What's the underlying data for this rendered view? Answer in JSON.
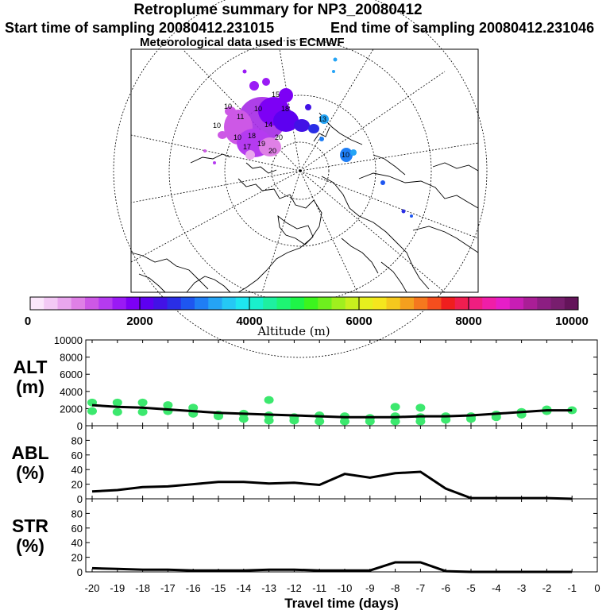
{
  "header": {
    "title": "Retroplume summary for NP3_20080412",
    "start_time": "Start time of sampling 20080412.231015",
    "end_time": "End time of sampling 20080412.231046",
    "met_data": "Meteorological data used is ECMWF"
  },
  "colorbar": {
    "label": "Altitude (m)",
    "ticks": [
      "0",
      "2000",
      "4000",
      "6000",
      "8000",
      "10000"
    ],
    "colors": [
      "#fbe6fb",
      "#f3c9f5",
      "#e9a6ee",
      "#df80e6",
      "#cd58e6",
      "#b53bf0",
      "#9a1af5",
      "#7d00f5",
      "#5d00f0",
      "#4212e6",
      "#2a2ee6",
      "#1e56f0",
      "#1f7ef5",
      "#25a4f5",
      "#25c8f5",
      "#1ee6f0",
      "#19f0cc",
      "#1ef0a0",
      "#1ef573",
      "#1ef548",
      "#3cf51e",
      "#6ef01e",
      "#a0f01e",
      "#c8f01e",
      "#e6f01e",
      "#f5e61e",
      "#f5c81e",
      "#f5a01e",
      "#f5781e",
      "#f54e1e",
      "#f01e1e",
      "#f01e50",
      "#f01e80",
      "#f01ea8",
      "#e61ec8",
      "#c81eb4",
      "#aa1e96",
      "#8c1e82",
      "#781e6e",
      "#64145a"
    ]
  },
  "chart_data": [
    {
      "type": "line",
      "name": "altitude",
      "ylabel": "ALT\n(m)",
      "ylim": [
        0,
        10000
      ],
      "yticks": [
        "0",
        "2000",
        "4000",
        "6000",
        "8000",
        "10000"
      ],
      "x": [
        -20,
        -19,
        -18,
        -17,
        -16,
        -15,
        -14,
        -13,
        -12,
        -11,
        -10,
        -9,
        -8,
        -7,
        -6,
        -5,
        -4,
        -3,
        -2,
        -1
      ],
      "values": [
        2400,
        2200,
        2100,
        1900,
        1700,
        1500,
        1400,
        1300,
        1200,
        1100,
        1000,
        1000,
        1000,
        1100,
        1100,
        1200,
        1400,
        1600,
        1800,
        1800
      ],
      "scatter_points": [
        [
          -20,
          2700
        ],
        [
          -20,
          1700
        ],
        [
          -19,
          2700
        ],
        [
          -19,
          1600
        ],
        [
          -18,
          2700
        ],
        [
          -18,
          1600
        ],
        [
          -17,
          2400
        ],
        [
          -17,
          1700
        ],
        [
          -16,
          2100
        ],
        [
          -16,
          1400
        ],
        [
          -15,
          1300
        ],
        [
          -15,
          1100
        ],
        [
          -14,
          1400
        ],
        [
          -14,
          800
        ],
        [
          -13,
          3000
        ],
        [
          -13,
          1200
        ],
        [
          -13,
          600
        ],
        [
          -12,
          1000
        ],
        [
          -12,
          600
        ],
        [
          -11,
          1200
        ],
        [
          -11,
          500
        ],
        [
          -10,
          1100
        ],
        [
          -10,
          500
        ],
        [
          -9,
          900
        ],
        [
          -9,
          500
        ],
        [
          -8,
          2200
        ],
        [
          -8,
          1100
        ],
        [
          -8,
          500
        ],
        [
          -7,
          2100
        ],
        [
          -7,
          1000
        ],
        [
          -7,
          500
        ],
        [
          -6,
          1100
        ],
        [
          -6,
          700
        ],
        [
          -5,
          1100
        ],
        [
          -5,
          800
        ],
        [
          -4,
          1300
        ],
        [
          -4,
          1000
        ],
        [
          -3,
          1600
        ],
        [
          -3,
          1300
        ],
        [
          -2,
          1900
        ],
        [
          -2,
          1700
        ],
        [
          -1,
          1800
        ]
      ],
      "xlim": [
        -20,
        0
      ]
    },
    {
      "type": "line",
      "name": "abl",
      "ylabel": "ABL\n(%)",
      "ylim": [
        0,
        100
      ],
      "yticks": [
        "0",
        "20",
        "40",
        "60",
        "80"
      ],
      "x": [
        -20,
        -19,
        -18,
        -17,
        -16,
        -15,
        -14,
        -13,
        -12,
        -11,
        -10,
        -9,
        -8,
        -7,
        -6,
        -5,
        -4,
        -3,
        -2,
        -1
      ],
      "values": [
        10,
        12,
        16,
        17,
        20,
        23,
        23,
        21,
        22,
        19,
        34,
        29,
        35,
        37,
        14,
        1,
        1,
        1,
        1,
        0
      ],
      "xlim": [
        -20,
        0
      ]
    },
    {
      "type": "line",
      "name": "str",
      "ylabel": "STR\n(%)",
      "ylim": [
        0,
        100
      ],
      "yticks": [
        "0",
        "20",
        "40",
        "60",
        "80"
      ],
      "x": [
        -20,
        -19,
        -18,
        -17,
        -16,
        -15,
        -14,
        -13,
        -12,
        -11,
        -10,
        -9,
        -8,
        -7,
        -6,
        -5,
        -4,
        -3,
        -2,
        -1
      ],
      "values": [
        5,
        4,
        3,
        3,
        2,
        2,
        2,
        3,
        3,
        2,
        2,
        2,
        13,
        13,
        1,
        0,
        0,
        0,
        0,
        0
      ],
      "xlabel": "Travel time (days)",
      "xticks": [
        "-20",
        "-19",
        "-18",
        "-17",
        "-16",
        "-15",
        "-14",
        "-13",
        "-12",
        "-11",
        "-10",
        "-9",
        "-8",
        "-7",
        "-6",
        "-5",
        "-4",
        "-3",
        "-2",
        "-1",
        "0"
      ],
      "xlim": [
        -20,
        0
      ]
    }
  ],
  "map": {
    "labels": [
      "10",
      "10",
      "10",
      "10",
      "11",
      "14",
      "18",
      "19",
      "20",
      "18",
      "13",
      "10",
      "20",
      "17",
      "15"
    ]
  }
}
